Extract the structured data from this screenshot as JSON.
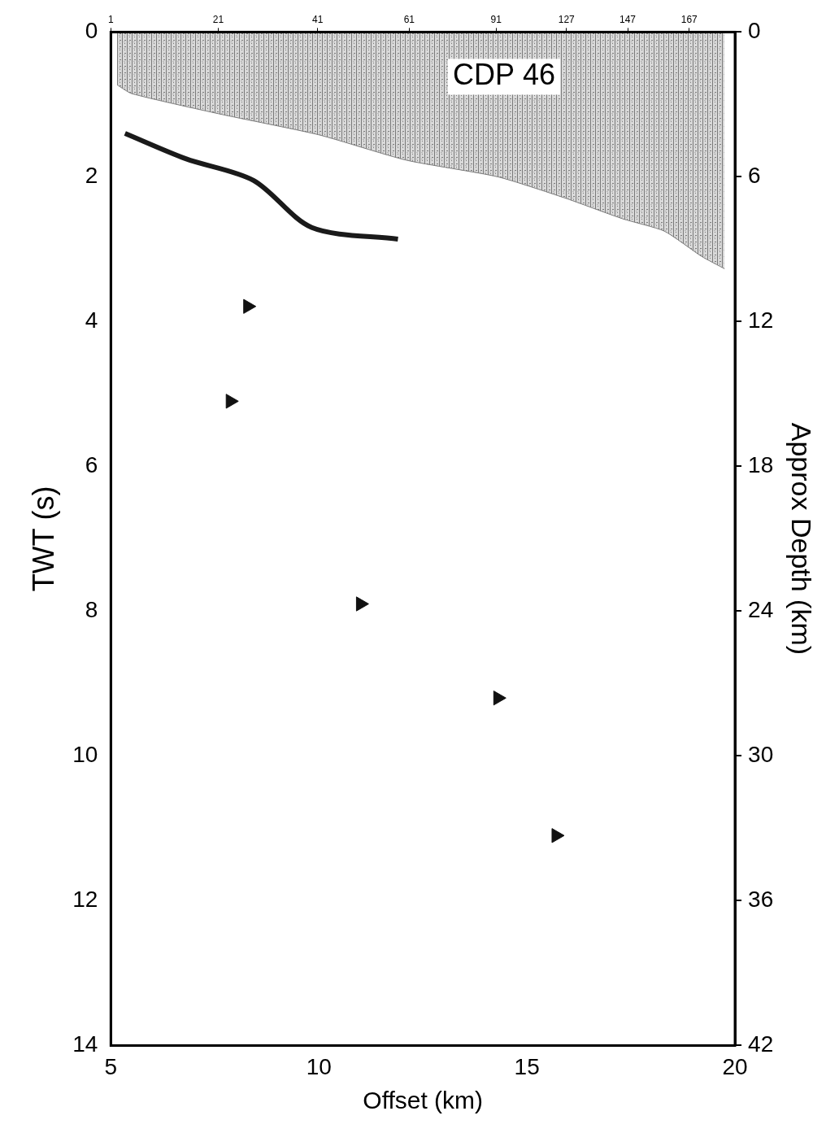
{
  "chart_data": {
    "type": "scatter",
    "title": "CDP 46",
    "xlabel": "Offset (km)",
    "ylabel": "TWT (s)",
    "y2label": "Approx Depth (km)",
    "xlim": [
      5,
      20
    ],
    "xticks": [
      5,
      10,
      15,
      20
    ],
    "x2ticks": [
      {
        "value": 5,
        "label": "1"
      },
      {
        "value": 7.58,
        "label": "21"
      },
      {
        "value": 9.97,
        "label": "41"
      },
      {
        "value": 12.17,
        "label": "61"
      },
      {
        "value": 14.26,
        "label": "91"
      },
      {
        "value": 15.95,
        "label": "127"
      },
      {
        "value": 17.42,
        "label": "147"
      },
      {
        "value": 18.9,
        "label": "167"
      }
    ],
    "ylim": [
      14,
      0
    ],
    "yticks": [
      0,
      2,
      4,
      6,
      8,
      10,
      12,
      14
    ],
    "y2lim": [
      42,
      0
    ],
    "y2ticks": [
      0,
      6,
      12,
      18,
      24,
      30,
      36,
      42
    ],
    "grid": false,
    "series": [
      {
        "type": "area",
        "color": "#7a7a7a",
        "x": [
          5.15,
          5.5,
          7.6,
          10,
          12.1,
          14.3,
          15.9,
          17.3,
          18.3,
          19.2,
          19.75
        ],
        "values": [
          0.73,
          0.85,
          1.13,
          1.42,
          1.77,
          2.0,
          2.29,
          2.58,
          2.75,
          3.1,
          3.27
        ]
      },
      {
        "type": "line",
        "color": "#1a1a1a",
        "x": [
          5.34,
          6.8,
          8.43,
          9.83,
          11.9
        ],
        "values": [
          1.4,
          1.75,
          2.05,
          2.7,
          2.86
        ]
      },
      {
        "type": "scatter",
        "marker": "triangle",
        "color": "#111111",
        "x": [
          8.29,
          7.87,
          11.0,
          14.3,
          15.7
        ],
        "values": [
          3.79,
          5.1,
          7.9,
          9.2,
          11.1
        ]
      }
    ]
  }
}
